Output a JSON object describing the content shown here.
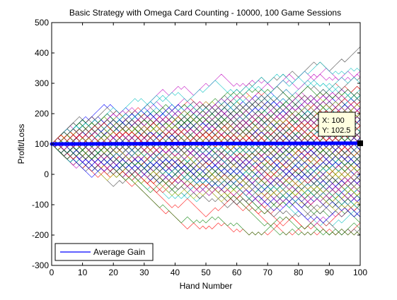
{
  "figure": {
    "title": "Basic Strategy with Omega Card Counting - 10000, 100 Game Sessions"
  },
  "chart_data": {
    "type": "line",
    "title": "Basic Strategy with Omega Card Counting - 10000, 100 Game Sessions",
    "xlabel": "Hand Number",
    "ylabel": "Profit/Loss",
    "xlim": [
      0,
      100
    ],
    "ylim": [
      -300,
      500
    ],
    "xticks": [
      0,
      10,
      20,
      30,
      40,
      50,
      60,
      70,
      80,
      90,
      100
    ],
    "yticks": [
      -300,
      -200,
      -100,
      0,
      100,
      200,
      300,
      400,
      500
    ],
    "grid": false,
    "legend": {
      "location": "bottom-left",
      "entries": [
        "Average Gain"
      ]
    },
    "sessions": {
      "count": 10000,
      "hands_per_session": 100,
      "start_value": 100,
      "step_size": 10,
      "envelope_at_hand_100": {
        "upper_max": 420,
        "upper_typical": 360,
        "lower_typical": -130,
        "lower_min": -200
      }
    },
    "series": [
      {
        "name": "Average Gain",
        "x": [
          0,
          100
        ],
        "y": [
          100,
          102.5
        ],
        "color": "#0000ff"
      }
    ],
    "datatip": {
      "x_label": "X: 100",
      "y_label": "Y: 102.5",
      "x": 100,
      "y": 102.5
    },
    "colors": [
      "#0000ff",
      "#008000",
      "#ff0000",
      "#00bfbf",
      "#bf00bf",
      "#bfbf00",
      "#404040"
    ]
  }
}
